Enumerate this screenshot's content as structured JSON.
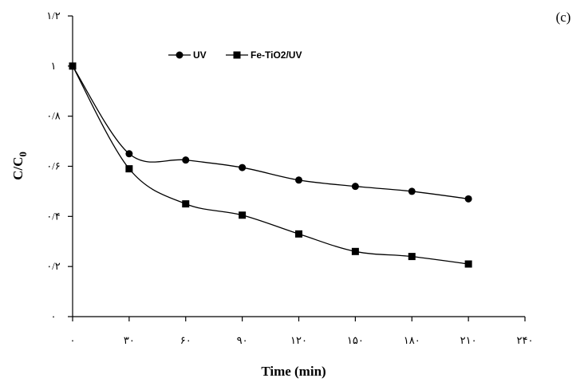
{
  "panel_label": "(c)",
  "chart_data": {
    "type": "line",
    "title": "",
    "xlabel": "Time (min)",
    "ylabel": "C/C",
    "ylabel_subscript": "0",
    "x": [
      0,
      30,
      60,
      90,
      120,
      150,
      180,
      210
    ],
    "xlim": [
      0,
      240
    ],
    "ylim": [
      0,
      1.2
    ],
    "x_ticks": [
      0,
      30,
      60,
      90,
      120,
      150,
      180,
      210,
      240
    ],
    "x_tick_labels": [
      "۰",
      "۳۰",
      "۶۰",
      "۹۰",
      "۱۲۰",
      "۱۵۰",
      "۱۸۰",
      "۲۱۰",
      "۲۴۰"
    ],
    "y_ticks": [
      0,
      0.2,
      0.4,
      0.6,
      0.8,
      1.0,
      1.2
    ],
    "y_tick_labels": [
      "۰",
      "۰/۲",
      "۰/۴",
      "۰/۶",
      "۰/۸",
      "۱",
      "۱/۲"
    ],
    "grid": false,
    "legend_position": "top-left",
    "series": [
      {
        "name": "UV",
        "marker": "circle",
        "color": "#000000",
        "values": [
          1.0,
          0.65,
          0.625,
          0.595,
          0.545,
          0.52,
          0.5,
          0.47
        ]
      },
      {
        "name": "Fe-TiO2/UV",
        "marker": "square",
        "color": "#000000",
        "values": [
          1.0,
          0.59,
          0.45,
          0.405,
          0.33,
          0.26,
          0.24,
          0.21
        ]
      }
    ]
  }
}
